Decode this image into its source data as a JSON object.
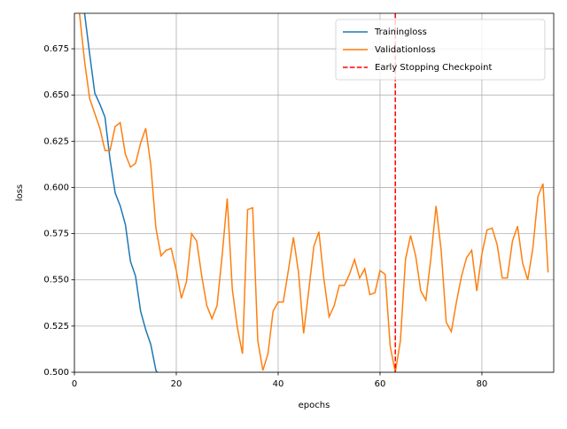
{
  "chart_data": {
    "type": "line",
    "x": [
      1,
      2,
      3,
      4,
      5,
      6,
      7,
      8,
      9,
      10,
      11,
      12,
      13,
      14,
      15,
      16,
      17,
      18,
      19,
      20,
      21,
      22,
      23,
      24,
      25,
      26,
      27,
      28,
      29,
      30,
      31,
      32,
      33,
      34,
      35,
      36,
      37,
      38,
      39,
      40,
      41,
      42,
      43,
      44,
      45,
      46,
      47,
      48,
      49,
      50,
      51,
      52,
      53,
      54,
      55,
      56,
      57,
      58,
      59,
      60,
      61,
      62,
      63,
      64,
      65,
      66,
      67,
      68,
      69,
      70,
      71,
      72,
      73,
      74,
      75,
      76,
      77,
      78,
      79,
      80,
      81,
      82,
      83,
      84,
      85,
      86,
      87,
      88,
      89,
      90,
      91,
      92,
      93
    ],
    "series": [
      {
        "name": "Trainingloss",
        "color": "#1f77b4",
        "values": [
          0.72,
          0.694,
          0.672,
          0.651,
          0.645,
          0.638,
          0.615,
          0.597,
          0.59,
          0.58,
          0.56,
          0.552,
          0.533,
          0.523,
          0.515,
          0.501,
          0.497,
          null,
          null,
          null,
          null,
          null,
          null,
          null,
          null,
          null,
          null,
          null,
          null,
          null,
          null,
          null,
          null,
          null,
          null,
          null,
          null,
          null,
          null,
          null,
          null,
          null,
          null,
          null,
          null,
          null,
          null,
          null,
          null,
          null,
          null,
          null,
          null,
          null,
          null,
          null,
          null,
          null,
          null,
          null,
          null,
          null,
          null,
          null,
          null,
          null,
          null,
          null,
          null,
          null,
          null,
          null,
          null,
          null,
          null,
          null,
          null,
          null,
          null,
          null,
          null,
          null,
          null,
          null,
          null,
          null,
          null,
          null,
          null,
          null,
          null,
          null,
          null
        ]
      },
      {
        "name": "Validationloss",
        "color": "#ff7f0e",
        "values": [
          0.694,
          0.668,
          0.648,
          0.64,
          0.632,
          0.62,
          0.62,
          0.633,
          0.635,
          0.618,
          0.611,
          0.613,
          0.624,
          0.632,
          0.612,
          0.578,
          0.563,
          0.566,
          0.567,
          0.555,
          0.54,
          0.549,
          0.575,
          0.571,
          0.552,
          0.536,
          0.529,
          0.536,
          0.563,
          0.594,
          0.545,
          0.524,
          0.51,
          0.588,
          0.589,
          0.517,
          0.501,
          0.51,
          0.533,
          0.538,
          0.538,
          0.555,
          0.573,
          0.554,
          0.521,
          0.544,
          0.568,
          0.576,
          0.55,
          0.53,
          0.536,
          0.547,
          0.547,
          0.553,
          0.561,
          0.551,
          0.556,
          0.542,
          0.543,
          0.555,
          0.553,
          0.514,
          0.5,
          0.517,
          0.561,
          0.574,
          0.563,
          0.544,
          0.539,
          0.562,
          0.59,
          0.566,
          0.527,
          0.522,
          0.538,
          0.552,
          0.562,
          0.566,
          0.544,
          0.564,
          0.577,
          0.578,
          0.569,
          0.551,
          0.551,
          0.571,
          0.579,
          0.559,
          0.55,
          0.567,
          0.595,
          0.602,
          0.554
        ]
      }
    ],
    "vline": {
      "name": "Early Stopping Checkpoint",
      "color": "#ff0000",
      "x": 63
    },
    "xlabel": "epochs",
    "ylabel": "loss",
    "xlim": [
      0,
      94.1
    ],
    "ylim": [
      0.5,
      0.6942
    ],
    "xticks": [
      0,
      20,
      40,
      60,
      80
    ],
    "yticks": [
      {
        "value": 0.5,
        "label": "0.500"
      },
      0.525,
      {
        "value": 0.55,
        "label": "0.550"
      },
      0.575,
      {
        "value": 0.6,
        "label": "0.600"
      },
      0.625,
      {
        "value": 0.65,
        "label": "0.650"
      },
      0.675
    ],
    "grid": true,
    "legend": "upper right"
  }
}
